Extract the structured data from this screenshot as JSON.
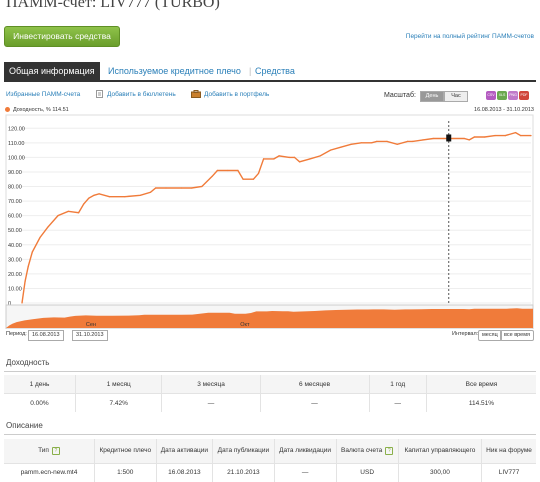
{
  "page": {
    "title": "ПАММ-счет: LIV777 (TURBO)"
  },
  "header": {
    "invest_button": "Инвестировать средства",
    "rating_link": "Перейти на полный рейтинг ПАММ-счетов"
  },
  "tabs": [
    {
      "label": "Общая информация",
      "active": true
    },
    {
      "label": "Используемое кредитное плечо",
      "active": false
    },
    {
      "label": "Средства",
      "active": false
    }
  ],
  "actions": {
    "favorites": "Избранные ПАММ-счета",
    "add_bulletin": "Добавить в бюллетень",
    "add_portfolio": "Добавить в портфель",
    "scale_label": "Масштаб:",
    "scale_day": "День",
    "scale_hour": "Час",
    "formats": [
      "CSV",
      "XLS",
      "PNG",
      "PDF"
    ]
  },
  "colors": {
    "accent": "#f07b3a",
    "green": "#7ab036",
    "link": "#2a7fb8"
  },
  "chart_header": {
    "legend": "Доходность, % 114.51",
    "range": "16.08.2013 - 31.10.2013"
  },
  "chart_data": {
    "type": "line",
    "ylim": [
      0,
      125
    ],
    "y_ticks": [
      "0",
      "10.00",
      "20.00",
      "30.00",
      "40.00",
      "50.00",
      "60.00",
      "70.00",
      "80.00",
      "90.00",
      "100.00",
      "110.00",
      "120.00"
    ],
    "series": [
      {
        "name": "Доходность, %",
        "points": [
          [
            0,
            0
          ],
          [
            0.6,
            15
          ],
          [
            1.2,
            25
          ],
          [
            2,
            35
          ],
          [
            3.5,
            45
          ],
          [
            5,
            52
          ],
          [
            7,
            60
          ],
          [
            9,
            63
          ],
          [
            11,
            62
          ],
          [
            12,
            68
          ],
          [
            13,
            72
          ],
          [
            14,
            74
          ],
          [
            15,
            75
          ],
          [
            17,
            73
          ],
          [
            20,
            73
          ],
          [
            23,
            74
          ],
          [
            25,
            76
          ],
          [
            26,
            79
          ],
          [
            28,
            79
          ],
          [
            31,
            79
          ],
          [
            33,
            79
          ],
          [
            35,
            80
          ],
          [
            37,
            87
          ],
          [
            38,
            91
          ],
          [
            40,
            91
          ],
          [
            42,
            91
          ],
          [
            43,
            85
          ],
          [
            45,
            85
          ],
          [
            46,
            89
          ],
          [
            47,
            99
          ],
          [
            49,
            99
          ],
          [
            50,
            101
          ],
          [
            52,
            100
          ],
          [
            53,
            100
          ],
          [
            54,
            97
          ],
          [
            56,
            99
          ],
          [
            58,
            101
          ],
          [
            60,
            105
          ],
          [
            62,
            107
          ],
          [
            64,
            109
          ],
          [
            66,
            110
          ],
          [
            68,
            110
          ],
          [
            69,
            111
          ],
          [
            71,
            111
          ],
          [
            73,
            109
          ],
          [
            75,
            111
          ],
          [
            76,
            111
          ],
          [
            78,
            112
          ],
          [
            80,
            113
          ],
          [
            82,
            113
          ],
          [
            84,
            113
          ],
          [
            86,
            113
          ],
          [
            87,
            112
          ],
          [
            88,
            114
          ],
          [
            90,
            114
          ],
          [
            92,
            115
          ],
          [
            94,
            115
          ],
          [
            96,
            117
          ],
          [
            97,
            115
          ],
          [
            99,
            115
          ]
        ]
      }
    ],
    "xlim": [
      0,
      99
    ],
    "navigator_labels": [
      "Сен",
      "Окт"
    ],
    "marker_x": 83
  },
  "period": {
    "label": "Период:",
    "from": "16.08.2013",
    "to": "31.10.2013",
    "interval_label": "Интервал:",
    "month_btn": "месяц",
    "all_btn": "все время"
  },
  "yield_section": {
    "title": "Доходность",
    "headers": [
      "1 день",
      "1 месяц",
      "3 месяца",
      "6 месяцев",
      "1 год",
      "Все время"
    ],
    "values": [
      "0.00%",
      "7.42%",
      "—",
      "—",
      "—",
      "114.51%"
    ]
  },
  "desc_section": {
    "title": "Описание",
    "headers": [
      "Тип",
      "Кредитное плечо",
      "Дата активации",
      "Дата публикации",
      "Дата ликвидации",
      "Валюта счета",
      "Капитал управляющего",
      "Ник на форуме"
    ],
    "values": [
      "pamm.ecn-new.mt4",
      "1:500",
      "16.08.2013",
      "21.10.2013",
      "—",
      "USD",
      "300,00",
      "LIV777"
    ]
  }
}
